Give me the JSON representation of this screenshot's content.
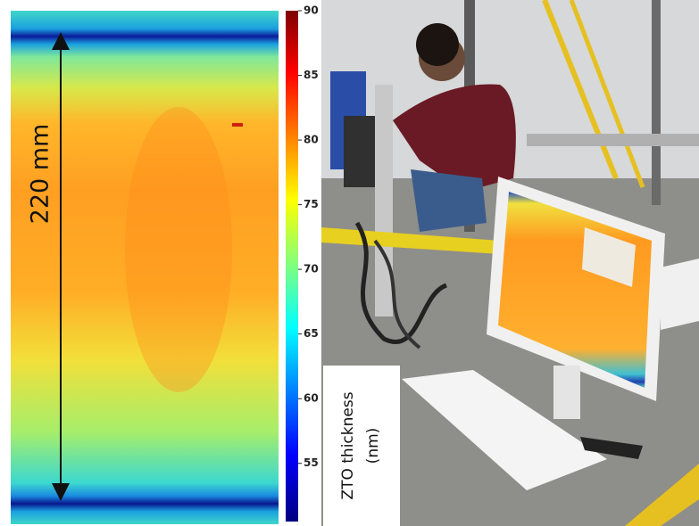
{
  "thickness_map": {
    "dimension_label": "220 mm"
  },
  "colorbar": {
    "label_line1": "ZTO thickness",
    "label_line2": "(nm)",
    "lim": [
      50.5,
      90
    ],
    "ticks": [
      55,
      60,
      65,
      70,
      75,
      80,
      85,
      90
    ]
  }
}
